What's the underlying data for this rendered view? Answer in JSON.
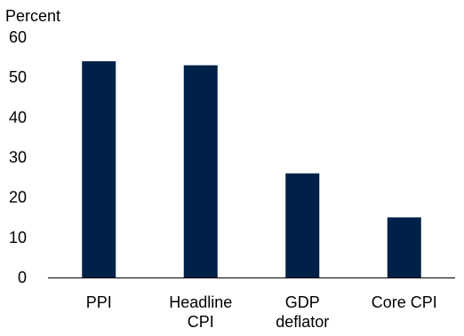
{
  "chart_data": {
    "type": "bar",
    "ylabel": "Percent",
    "categories": [
      [
        "PPI"
      ],
      [
        "Headline",
        "CPI"
      ],
      [
        "GDP",
        "deflator"
      ],
      [
        "Core CPI"
      ]
    ],
    "values": [
      54,
      53,
      26,
      15
    ],
    "ylim": [
      0,
      60
    ],
    "yticks": [
      0,
      10,
      20,
      30,
      40,
      50,
      60
    ],
    "grid": false,
    "colors": {
      "bar": "#002147",
      "axis": "#000000"
    }
  }
}
